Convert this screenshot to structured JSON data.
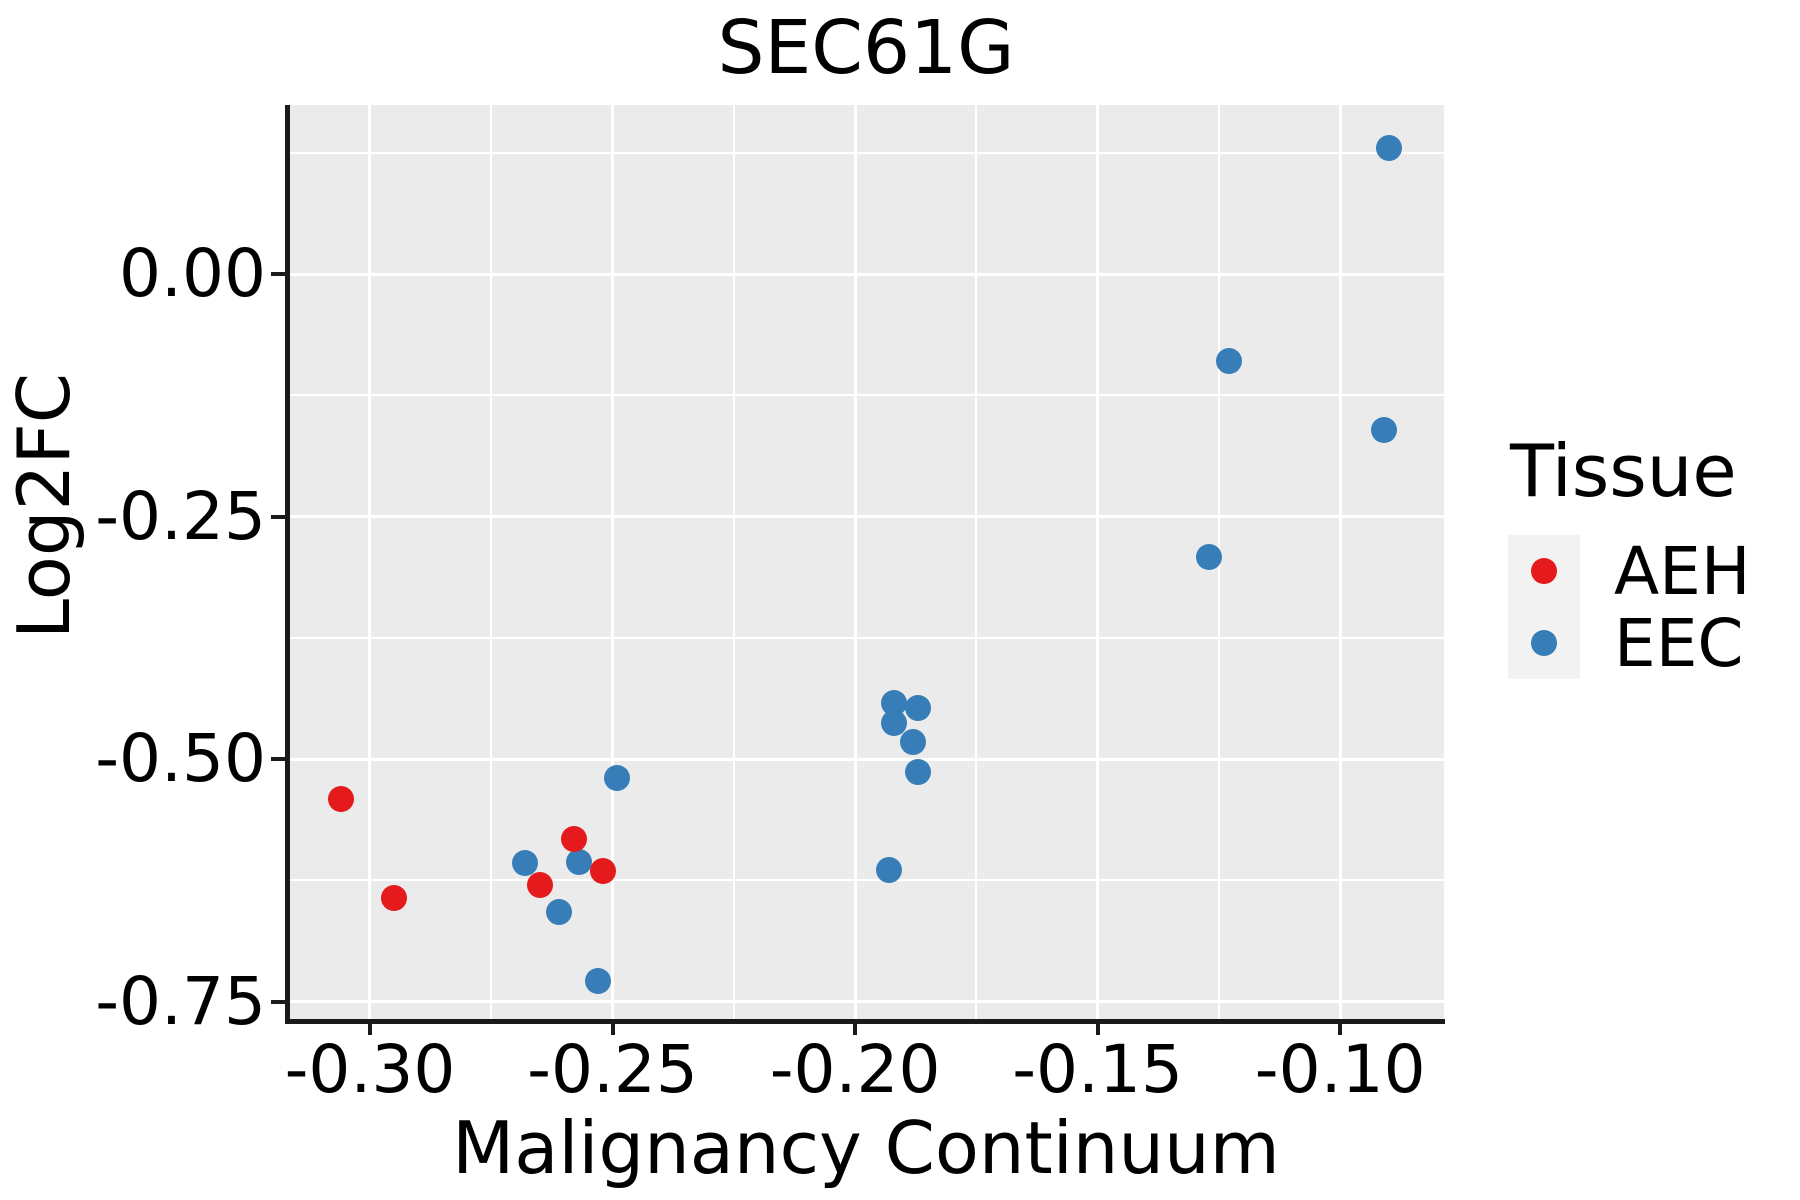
{
  "figure": {
    "title": "SEC61G"
  },
  "chart_data": {
    "type": "scatter",
    "title": "SEC61G",
    "xlabel": "Malignancy Continuum",
    "ylabel": "Log2FC",
    "xlim": [
      -0.3169,
      -0.0786
    ],
    "ylim": [
      -0.7678,
      0.1744
    ],
    "grid": {
      "visible": true,
      "major_color": "#ffffff",
      "minor_color": "#ffffff",
      "panel_background": "#ebebeb"
    },
    "x_ticks": [
      {
        "value": -0.3,
        "label": "-0.30"
      },
      {
        "value": -0.25,
        "label": "-0.25"
      },
      {
        "value": -0.2,
        "label": "-0.20"
      },
      {
        "value": -0.15,
        "label": "-0.15"
      },
      {
        "value": -0.1,
        "label": "-0.10"
      }
    ],
    "x_minor_ticks": [
      -0.275,
      -0.225,
      -0.175,
      -0.125
    ],
    "y_ticks": [
      {
        "value": 0.0,
        "label": "0.00"
      },
      {
        "value": -0.25,
        "label": "-0.25"
      },
      {
        "value": -0.5,
        "label": "-0.50"
      },
      {
        "value": -0.75,
        "label": "-0.75"
      }
    ],
    "y_minor_ticks": [
      0.125,
      -0.125,
      -0.375,
      -0.625
    ],
    "legend": {
      "title": "Tissue",
      "position": "right",
      "key_background": "#f2f2f2",
      "entries": [
        {
          "label": "AEH",
          "color": "#e41a1c"
        },
        {
          "label": "EEC",
          "color": "#377eb8"
        }
      ]
    },
    "series": [
      {
        "name": "EEC",
        "color": "#377eb8",
        "points": [
          [
            -0.268,
            -0.607
          ],
          [
            -0.261,
            -0.658
          ],
          [
            -0.257,
            -0.606
          ],
          [
            -0.253,
            -0.729
          ],
          [
            -0.249,
            -0.519
          ],
          [
            -0.193,
            -0.614
          ],
          [
            -0.192,
            -0.442
          ],
          [
            -0.192,
            -0.463
          ],
          [
            -0.188,
            -0.482
          ],
          [
            -0.187,
            -0.447
          ],
          [
            -0.187,
            -0.513
          ],
          [
            -0.127,
            -0.292
          ],
          [
            -0.123,
            -0.089
          ],
          [
            -0.091,
            -0.161
          ],
          [
            -0.09,
            0.13
          ]
        ]
      },
      {
        "name": "AEH",
        "color": "#e41a1c",
        "points": [
          [
            -0.306,
            -0.541
          ],
          [
            -0.295,
            -0.643
          ],
          [
            -0.265,
            -0.63
          ],
          [
            -0.258,
            -0.582
          ],
          [
            -0.252,
            -0.615
          ]
        ]
      }
    ]
  }
}
